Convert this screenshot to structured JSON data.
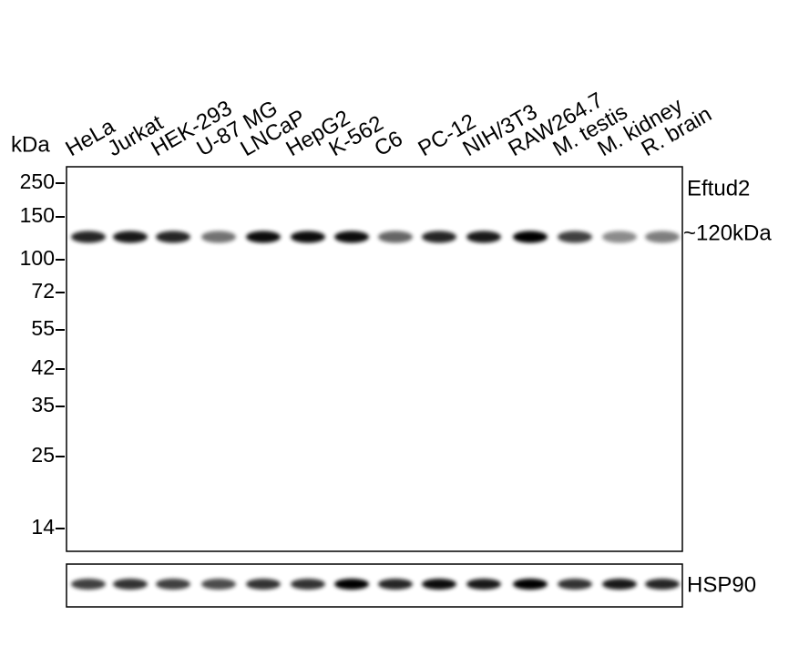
{
  "axis_unit": "kDa",
  "lanes": [
    "HeLa",
    "Jurkat",
    "HEK-293",
    "U-87 MG",
    "LNCaP",
    "HepG2",
    "K-562",
    "C6",
    "PC-12",
    "NIH/3T3",
    "RAW264.7",
    "M. testis",
    "M. kidney",
    "R. brain"
  ],
  "markers": [
    "250",
    "150",
    "100",
    "72",
    "55",
    "42",
    "35",
    "25",
    "14"
  ],
  "target": "Eftud2",
  "band_size": "~120kDa",
  "loading_control": "HSP90"
}
